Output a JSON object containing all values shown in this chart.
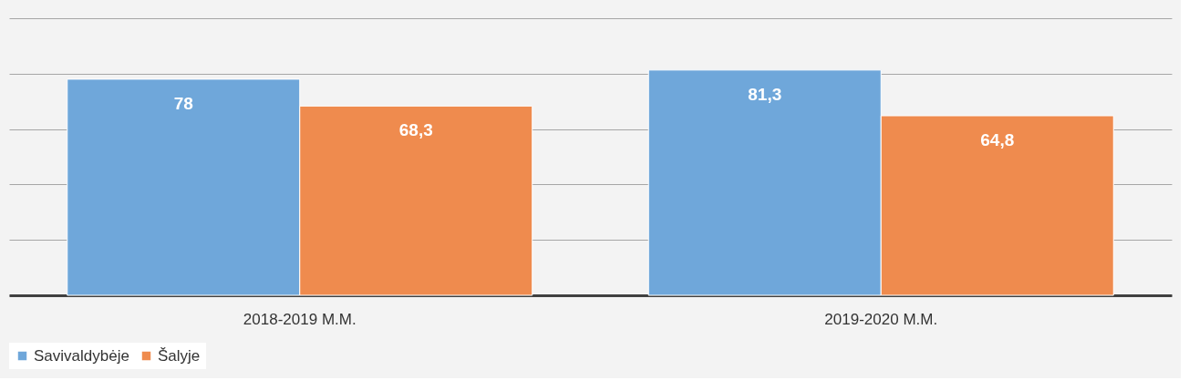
{
  "chart_data": {
    "type": "bar",
    "categories": [
      "2018-2019 M.M.",
      "2019-2020 M.M."
    ],
    "series": [
      {
        "name": "Savivaldybėje",
        "color": "#6fa7da",
        "values": [
          78,
          81.3
        ],
        "value_labels": [
          "78",
          "81,3"
        ]
      },
      {
        "name": "Šalyje",
        "color": "#ef8b4e",
        "values": [
          68.3,
          64.8
        ],
        "value_labels": [
          "68,3",
          "64,8"
        ]
      }
    ],
    "ylim": [
      0,
      100
    ],
    "yticks": [
      {
        "value": 0,
        "label": null
      },
      {
        "value": 20,
        "label": null
      },
      {
        "value": 40,
        "label": null
      },
      {
        "value": 60,
        "label": null
      },
      {
        "value": 80,
        "label": null
      },
      {
        "value": 100,
        "label": null
      }
    ],
    "tick_labels": "x",
    "grid": "y",
    "legend": "bottom"
  }
}
